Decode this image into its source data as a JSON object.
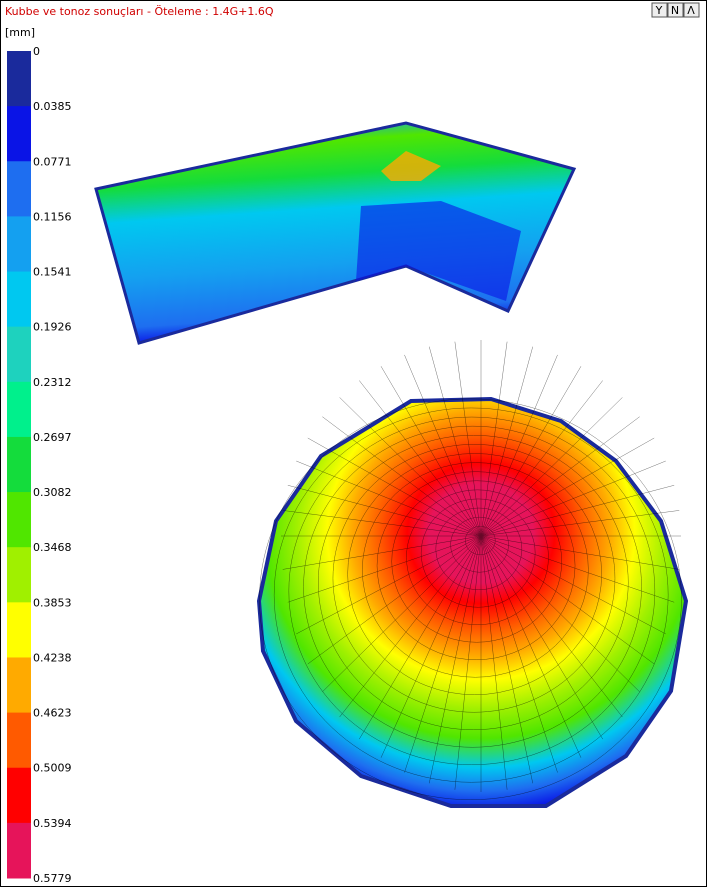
{
  "header": {
    "title": "Kubbe ve tonoz sonuçları - Öteleme : 1.4G+1.6Q",
    "buttons": [
      "Y",
      "N",
      "Λ"
    ]
  },
  "legend": {
    "unit": "[mm]",
    "labels": [
      "0",
      "0.0385",
      "0.0771",
      "0.1156",
      "0.1541",
      "0.1926",
      "0.2312",
      "0.2697",
      "0.3082",
      "0.3468",
      "0.3853",
      "0.4238",
      "0.4623",
      "0.5009",
      "0.5394",
      "0.5779"
    ],
    "colors": [
      "#1a2a9c",
      "#0a14e6",
      "#1e6ef0",
      "#14a0f0",
      "#00c8f0",
      "#1ed2be",
      "#00f08c",
      "#14dc3c",
      "#50e600",
      "#a0f000",
      "#ffff00",
      "#ffaa00",
      "#ff5a00",
      "#ff0000",
      "#e6145a"
    ]
  }
}
